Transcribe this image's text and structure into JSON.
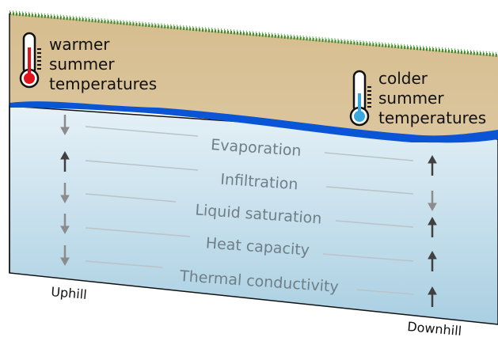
{
  "warm_label": [
    "warmer",
    "summer",
    "temperatures"
  ],
  "cold_label": [
    "colder",
    "summer",
    "temperatures"
  ],
  "factors": [
    "Evaporation",
    "Infiltration",
    "Liquid saturation",
    "Heat capacity",
    "Thermal conductivity"
  ],
  "uphill": "Uphill",
  "downhill": "Downhill"
}
